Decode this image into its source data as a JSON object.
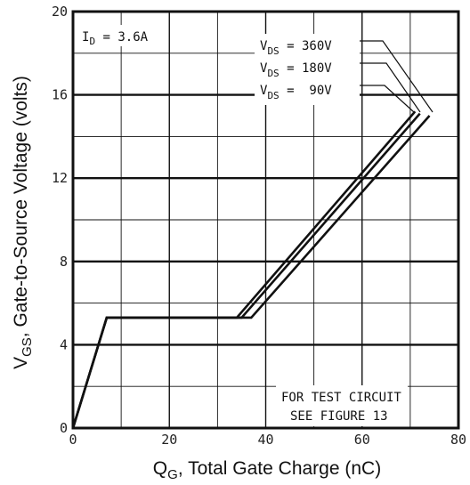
{
  "chart_data": {
    "type": "line",
    "xlabel": {
      "main": "Q",
      "sub": "G",
      "rest": ", Total Gate Charge (nC)"
    },
    "ylabel": {
      "main": "V",
      "sub": "GS",
      "rest": ", Gate-to-Source Voltage (volts)"
    },
    "xlim": [
      0,
      80
    ],
    "ylim": [
      0,
      20
    ],
    "x_ticks": [
      "0",
      "20",
      "40",
      "60",
      "80"
    ],
    "y_ticks": [
      "0",
      "4",
      "8",
      "12",
      "16",
      "20"
    ],
    "grid": true,
    "annotations": {
      "id": {
        "main": "I",
        "sub": "D",
        "rest": " = 3.6A"
      },
      "test_line1": "FOR TEST CIRCUIT",
      "test_line2": "SEE FIGURE 13"
    },
    "series": [
      {
        "name": {
          "main": "V",
          "sub": "DS",
          "rest": " = 360V"
        },
        "x": [
          0,
          7,
          37,
          74
        ],
        "y": [
          0,
          5.3,
          5.3,
          15
        ]
      },
      {
        "name": {
          "main": "V",
          "sub": "DS",
          "rest": " = 180V"
        },
        "x": [
          0,
          7,
          35,
          72
        ],
        "y": [
          0,
          5.3,
          5.3,
          15.1
        ]
      },
      {
        "name": {
          "main": "V",
          "sub": "DS",
          "rest": " =  90V"
        },
        "x": [
          0,
          7,
          34,
          71
        ],
        "y": [
          0,
          5.3,
          5.3,
          15.2
        ]
      }
    ]
  }
}
